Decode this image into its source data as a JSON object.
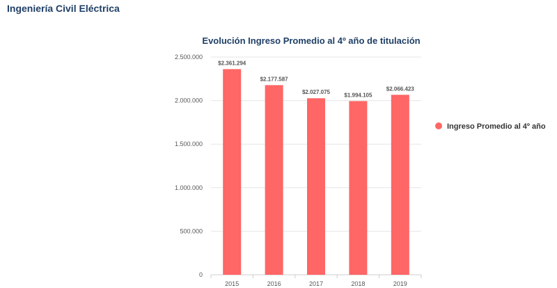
{
  "page": {
    "heading": "Ingeniería Civil Eléctrica"
  },
  "colors": {
    "bar": "#ff6666",
    "heading": "#1f3f66",
    "grid": "#e6e6e6"
  },
  "chart_data": {
    "type": "bar",
    "title": "Evolución Ingreso Promedio al 4º año de titulación",
    "xlabel": "",
    "ylabel": "",
    "categories": [
      "2015",
      "2016",
      "2017",
      "2018",
      "2019"
    ],
    "series": [
      {
        "name": "Ingreso Promedio al 4º año",
        "values": [
          2361294,
          2177587,
          2027075,
          1994105,
          2066423
        ],
        "labels": [
          "$2.361.294",
          "$2.177.587",
          "$2.027.075",
          "$1.994.105",
          "$2.066.423"
        ]
      }
    ],
    "ylim": [
      0,
      2500000
    ],
    "yticks": [
      0,
      500000,
      1000000,
      1500000,
      2000000,
      2500000
    ],
    "ytick_labels": [
      "0",
      "500.000",
      "1.000.000",
      "1.500.000",
      "2.000.000",
      "2.500.000"
    ],
    "grid": true,
    "legend": "right"
  }
}
